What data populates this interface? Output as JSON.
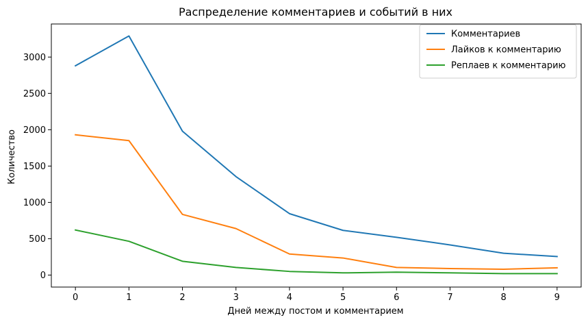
{
  "chart_data": {
    "type": "line",
    "title": "Распределение комментариев и событий в них",
    "xlabel": "Дней между постом и комментарием",
    "ylabel": "Количество",
    "x": [
      0,
      1,
      2,
      3,
      4,
      5,
      6,
      7,
      8,
      9
    ],
    "xlim": [
      -0.45,
      9.45
    ],
    "ylim": [
      -165,
      3455
    ],
    "yticks": [
      0,
      500,
      1000,
      1500,
      2000,
      2500,
      3000
    ],
    "grid": false,
    "legend_position": "top-right",
    "series": [
      {
        "name": "Комментариев",
        "color": "#1f77b4",
        "values": [
          2880,
          3290,
          1980,
          1355,
          845,
          615,
          520,
          415,
          300,
          255
        ]
      },
      {
        "name": "Лайков к комментарию",
        "color": "#ff7f0e",
        "values": [
          1930,
          1850,
          835,
          640,
          290,
          235,
          105,
          90,
          80,
          100
        ]
      },
      {
        "name": "Реплаев к комментарию",
        "color": "#2ca02c",
        "values": [
          620,
          465,
          190,
          105,
          50,
          30,
          40,
          30,
          20,
          20
        ]
      }
    ]
  }
}
